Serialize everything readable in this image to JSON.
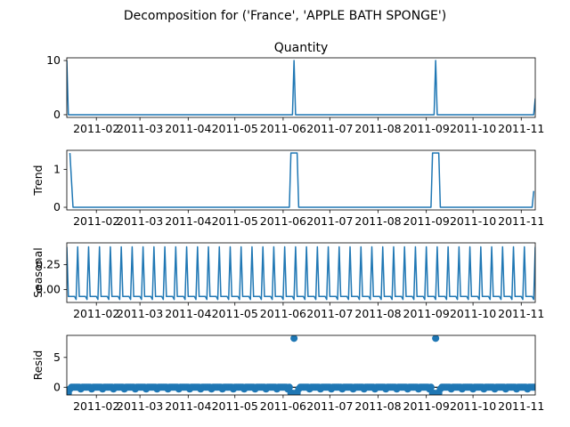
{
  "figure": {
    "suptitle": "Decomposition for ('France', 'APPLE BATH SPONGE')"
  },
  "chart_data": [
    {
      "type": "line",
      "title": "Quantity",
      "ylabel": "",
      "ylim": [
        -0.5,
        10.5
      ],
      "yticks": [
        0,
        10
      ],
      "xlim": [
        "2011-01-13",
        "2011-11-10"
      ],
      "xticks": [
        "2011-02-01",
        "2011-03-01",
        "2011-04-01",
        "2011-05-01",
        "2011-06-01",
        "2011-07-01",
        "2011-08-01",
        "2011-09-01",
        "2011-10-01",
        "2011-11-01"
      ],
      "xtick_labels": [
        "2011-02",
        "2011-03",
        "2011-04",
        "2011-05",
        "2011-06",
        "2011-07",
        "2011-08",
        "2011-09",
        "2011-10",
        "2011-11"
      ],
      "series": [
        {
          "points": [
            [
              "2011-01-13",
              10
            ],
            [
              "2011-01-14",
              0
            ],
            [
              "2011-06-07",
              0
            ],
            [
              "2011-06-08",
              10
            ],
            [
              "2011-06-09",
              0
            ],
            [
              "2011-09-06",
              0
            ],
            [
              "2011-09-07",
              10
            ],
            [
              "2011-09-08",
              0
            ],
            [
              "2011-11-09",
              0
            ],
            [
              "2011-11-10",
              3
            ]
          ]
        }
      ]
    },
    {
      "type": "line",
      "title": "",
      "ylabel": "Trend",
      "ylim": [
        -0.07,
        1.5
      ],
      "yticks": [
        0,
        1
      ],
      "xlim": [
        "2011-01-13",
        "2011-11-10"
      ],
      "xticks": [
        "2011-02-01",
        "2011-03-01",
        "2011-04-01",
        "2011-05-01",
        "2011-06-01",
        "2011-07-01",
        "2011-08-01",
        "2011-09-01",
        "2011-10-01",
        "2011-11-01"
      ],
      "xtick_labels": [
        "2011-02",
        "2011-03",
        "2011-04",
        "2011-05",
        "2011-06",
        "2011-07",
        "2011-08",
        "2011-09",
        "2011-10",
        "2011-11"
      ],
      "series": [
        {
          "points": [
            [
              "2011-01-15",
              1.43
            ],
            [
              "2011-01-17",
              0
            ],
            [
              "2011-06-05",
              0
            ],
            [
              "2011-06-06",
              1.43
            ],
            [
              "2011-06-10",
              1.43
            ],
            [
              "2011-06-11",
              0
            ],
            [
              "2011-09-04",
              0
            ],
            [
              "2011-09-05",
              1.43
            ],
            [
              "2011-09-09",
              1.43
            ],
            [
              "2011-09-10",
              0
            ],
            [
              "2011-11-08",
              0
            ],
            [
              "2011-11-09",
              0.43
            ]
          ]
        }
      ]
    },
    {
      "type": "line",
      "title": "",
      "ylabel": "Seasonal",
      "ylim": [
        -0.13,
        0.47
      ],
      "yticks": [
        0.0,
        0.25
      ],
      "ytick_labels": [
        "0.00",
        "0.25"
      ],
      "xlim": [
        "2011-01-13",
        "2011-11-10"
      ],
      "xticks": [
        "2011-02-01",
        "2011-03-01",
        "2011-04-01",
        "2011-05-01",
        "2011-06-01",
        "2011-07-01",
        "2011-08-01",
        "2011-09-01",
        "2011-10-01",
        "2011-11-01"
      ],
      "xtick_labels": [
        "2011-02",
        "2011-03",
        "2011-04",
        "2011-05",
        "2011-06",
        "2011-07",
        "2011-08",
        "2011-09",
        "2011-10",
        "2011-11"
      ],
      "series": [
        {
          "pattern": "weekly",
          "start": "2011-01-13",
          "end": "2011-11-10",
          "weekly_values": [
            0.43,
            -0.07,
            -0.07,
            -0.07,
            -0.07,
            -0.07,
            -0.1
          ]
        }
      ]
    },
    {
      "type": "scatter",
      "title": "",
      "ylabel": "Resid",
      "ylim": [
        -1.3,
        8.7
      ],
      "yticks": [
        0,
        5
      ],
      "zero_line": true,
      "xlim": [
        "2011-01-13",
        "2011-11-10"
      ],
      "xticks": [
        "2011-02-01",
        "2011-03-01",
        "2011-04-01",
        "2011-05-01",
        "2011-06-01",
        "2011-07-01",
        "2011-08-01",
        "2011-09-01",
        "2011-10-01",
        "2011-11-01"
      ],
      "xtick_labels": [
        "2011-02",
        "2011-03",
        "2011-04",
        "2011-05",
        "2011-06",
        "2011-07",
        "2011-08",
        "2011-09",
        "2011-10",
        "2011-11"
      ],
      "series": [
        {
          "default_points": {
            "start": "2011-01-15",
            "end": "2011-11-10",
            "weekly_values": [
              -0.3,
              0,
              0,
              0,
              0,
              0,
              0
            ]
          },
          "points": [
            [
              "2011-01-13",
              -1
            ],
            [
              "2011-01-14",
              -1
            ],
            [
              "2011-06-06",
              -1
            ],
            [
              "2011-06-07",
              -1
            ],
            [
              "2011-06-08",
              8.2
            ],
            [
              "2011-06-09",
              -1
            ],
            [
              "2011-06-10",
              -1
            ],
            [
              "2011-09-05",
              -1
            ],
            [
              "2011-09-06",
              -1
            ],
            [
              "2011-09-07",
              8.2
            ],
            [
              "2011-09-08",
              -1
            ],
            [
              "2011-09-09",
              -1
            ]
          ]
        }
      ]
    }
  ],
  "colors": {
    "line": "#1f77b4",
    "axis": "#000000",
    "zero_line": "#000000"
  }
}
